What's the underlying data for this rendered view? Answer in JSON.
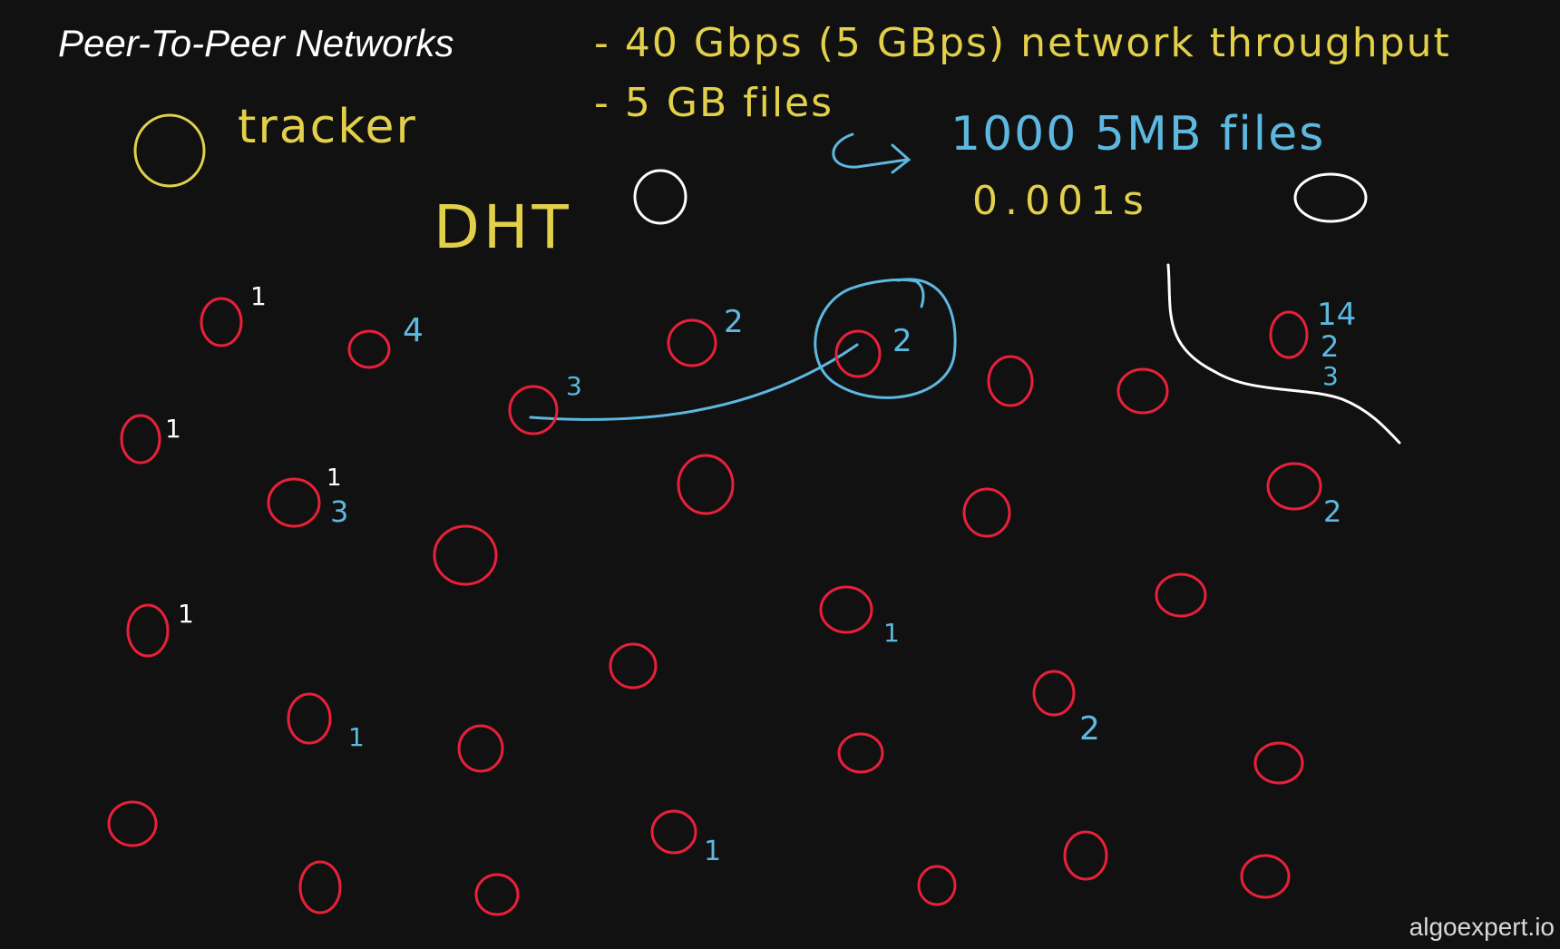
{
  "title": "Peer-To-Peer Networks",
  "notes": {
    "throughput": "- 40 Gbps (5 GBps) network throughput",
    "files": "- 5 GB files",
    "split": "1000 5MB files",
    "time": "0.001s"
  },
  "labels": {
    "tracker": "tracker",
    "dht": "DHT"
  },
  "watermark": "algoexpert.io",
  "colors": {
    "background": "#111111",
    "peer": "#e8203a",
    "chunk_white": "#ffffff",
    "chunk_blue": "#5db8e0",
    "note_yellow": "#e3d04a",
    "annotation_blue": "#5db8e0",
    "node_white": "#ffffff"
  },
  "peer_chunk_labels": [
    "1",
    "4",
    "2",
    "2",
    "3",
    "1",
    "14",
    "2",
    "3",
    "1",
    "3",
    "2",
    "1",
    "1",
    "1",
    "2",
    "1"
  ]
}
